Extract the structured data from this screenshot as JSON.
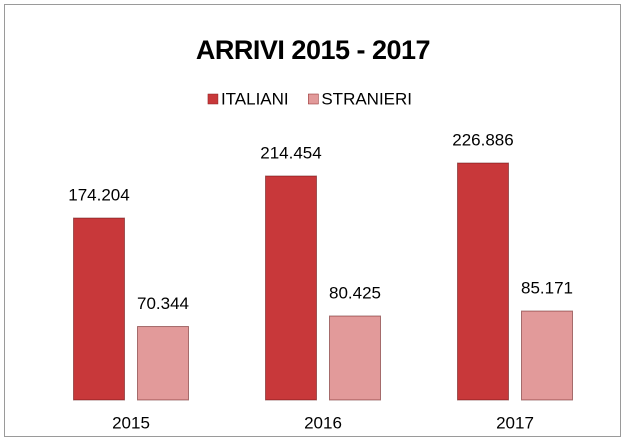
{
  "chart_data": {
    "type": "bar",
    "title": "ARRIVI 2015 - 2017",
    "categories": [
      "2015",
      "2016",
      "2017"
    ],
    "series": [
      {
        "name": "ITALIANI",
        "color": "#c8383a",
        "values": [
          174204,
          214454,
          226886
        ],
        "value_labels": [
          "174.204",
          "214.454",
          "226.886"
        ]
      },
      {
        "name": "STRANIERI",
        "color": "#e29a9a",
        "values": [
          70344,
          80425,
          85171
        ],
        "value_labels": [
          "70.344",
          "80.425",
          "85.171"
        ]
      }
    ],
    "legend": "top"
  }
}
